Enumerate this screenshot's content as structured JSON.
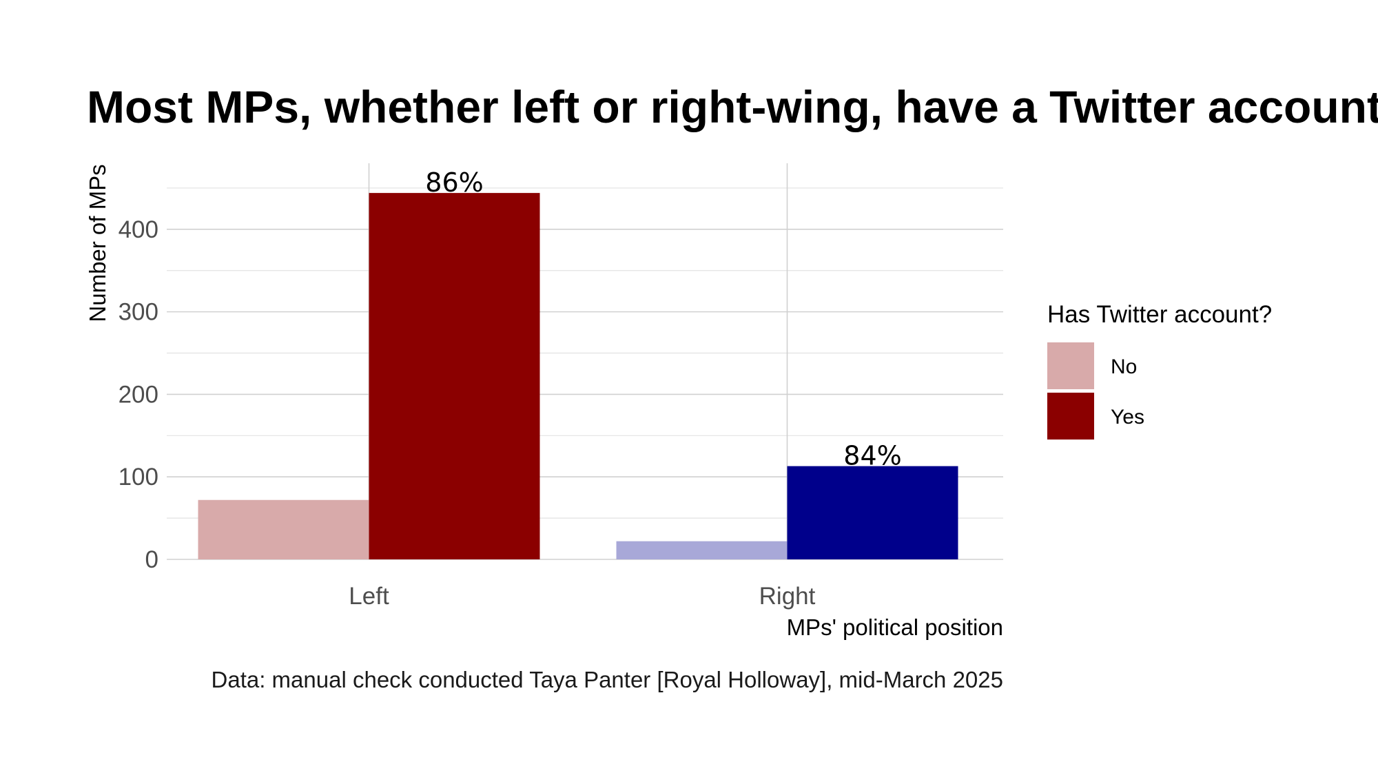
{
  "chart_data": {
    "type": "bar",
    "title": "Most MPs, whether left or right-wing, have a Twitter account",
    "xlabel": "MPs' political position",
    "ylabel": "Number of MPs",
    "caption": "Data: manual check conducted Taya Panter [Royal Holloway], mid-March 2025",
    "categories": [
      "Left",
      "Right"
    ],
    "series": [
      {
        "name": "No",
        "values": [
          72,
          22
        ]
      },
      {
        "name": "Yes",
        "values": [
          444,
          113
        ]
      }
    ],
    "data_labels": [
      "86%",
      "84%"
    ],
    "ylim": [
      0,
      480
    ],
    "yticks": [
      0,
      100,
      200,
      300,
      400
    ],
    "grid": true,
    "legend": {
      "title": "Has Twitter account?",
      "position": "right",
      "items": [
        {
          "label": "No",
          "color": "#d8aaaa"
        },
        {
          "label": "Yes",
          "color": "#8b0000"
        }
      ]
    },
    "colors": {
      "Left": {
        "No": "#d8aaaa",
        "Yes": "#8b0000"
      },
      "Right": {
        "No": "#a8a8d8",
        "Yes": "#00008b"
      }
    }
  }
}
